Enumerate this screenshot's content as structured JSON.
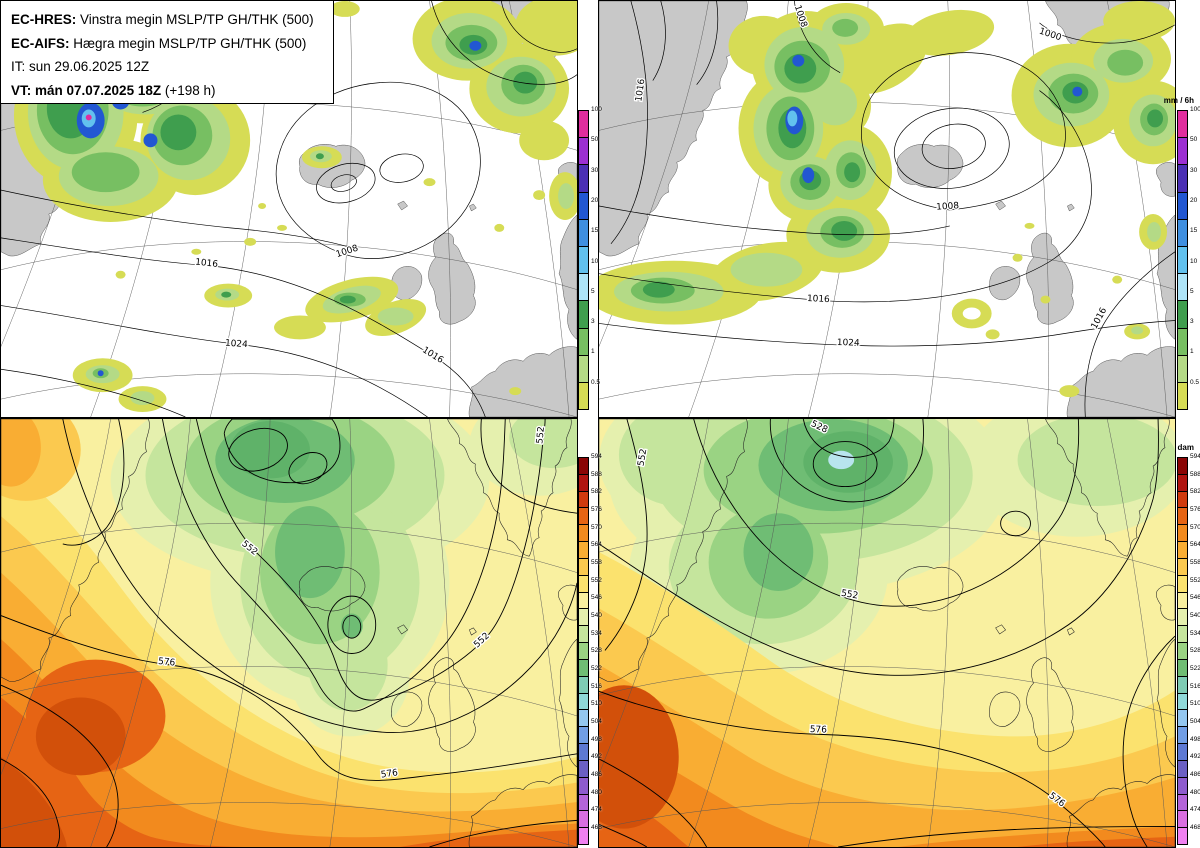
{
  "info_box": {
    "line1": {
      "label": "EC-HRES:",
      "text": "Vinstra megin MSLP/TP GH/THK (500)"
    },
    "line2": {
      "label": "EC-AIFS:",
      "text": "Hægra megin MSLP/TP GH/THK (500)"
    },
    "line3": "IT: sun 29.06.2025 12Z",
    "line4": {
      "bold": "VT: mán 07.07.2025 18Z",
      "normal": "(+198 h)"
    }
  },
  "colorbars": {
    "precip": {
      "unit": "mm / 6h",
      "levels": [
        "100",
        "50",
        "30",
        "20",
        "15",
        "10",
        "5",
        "3",
        "1",
        "0.5"
      ],
      "colors": [
        "#e02d9e",
        "#9c2fd2",
        "#4b2fb4",
        "#2257d2",
        "#3f8fe0",
        "#62c1ee",
        "#aee4f8",
        "#3f9e4e",
        "#77bf62",
        "#b4da86",
        "#d6dc55"
      ]
    },
    "thickness": {
      "unit": "dam",
      "levels": [
        "594",
        "588",
        "582",
        "576",
        "570",
        "564",
        "558",
        "552",
        "546",
        "540",
        "534",
        "528",
        "522",
        "516",
        "510",
        "504",
        "498",
        "492",
        "486",
        "480",
        "474",
        "468"
      ],
      "colors": [
        "#8a0505",
        "#b01410",
        "#d03a0e",
        "#e66414",
        "#f28a1e",
        "#f9ad33",
        "#fbc94f",
        "#fbe26e",
        "#f9f0a0",
        "#e5f0ae",
        "#c5e59d",
        "#9ad383",
        "#6fbd74",
        "#7fccb5",
        "#90d9d9",
        "#94c7f0",
        "#719ee5",
        "#5d79d3",
        "#6b60c4",
        "#8e5cce",
        "#b364d9",
        "#d96fe1",
        "#f080f1"
      ]
    }
  },
  "panels": {
    "hres_mslp": {
      "isobar_labels": [
        "1008",
        "1016",
        "1024",
        "1016"
      ]
    },
    "aifs_mslp": {
      "isobar_labels": [
        "1008",
        "1016",
        "1024",
        "1016",
        "1016",
        "1008",
        "1000"
      ]
    },
    "hres_thk": {
      "contour_labels": [
        "552",
        "552",
        "552",
        "576",
        "576"
      ]
    },
    "aifs_thk": {
      "contour_labels": [
        "528",
        "552",
        "552",
        "576",
        "576"
      ]
    }
  }
}
